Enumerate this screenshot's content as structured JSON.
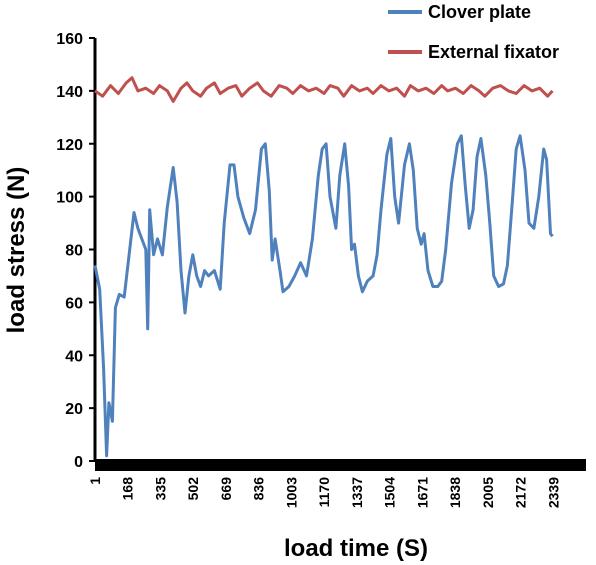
{
  "chart_data": {
    "type": "line",
    "title": "",
    "xlabel": "load time (S)",
    "ylabel": "load stress (N)",
    "ylim": [
      0,
      160
    ],
    "xlim": [
      1,
      2506
    ],
    "y_ticks": [
      0,
      20,
      40,
      60,
      80,
      100,
      120,
      140,
      160
    ],
    "x_tick_labels": [
      "1",
      "168",
      "335",
      "502",
      "669",
      "836",
      "1003",
      "1170",
      "1337",
      "1504",
      "1671",
      "1838",
      "2005",
      "2172",
      "2339"
    ],
    "legend_position": "top-right",
    "grid": false,
    "series": [
      {
        "name": "Clover plate",
        "color": "#4f81bd",
        "points": [
          [
            1,
            74
          ],
          [
            25,
            65
          ],
          [
            45,
            35
          ],
          [
            60,
            2
          ],
          [
            72,
            22
          ],
          [
            90,
            15
          ],
          [
            105,
            58
          ],
          [
            125,
            63
          ],
          [
            150,
            62
          ],
          [
            175,
            78
          ],
          [
            200,
            94
          ],
          [
            220,
            88
          ],
          [
            240,
            84
          ],
          [
            260,
            80
          ],
          [
            270,
            50
          ],
          [
            280,
            95
          ],
          [
            300,
            78
          ],
          [
            320,
            84
          ],
          [
            345,
            78
          ],
          [
            370,
            96
          ],
          [
            400,
            111
          ],
          [
            420,
            98
          ],
          [
            440,
            72
          ],
          [
            460,
            56
          ],
          [
            480,
            70
          ],
          [
            500,
            78
          ],
          [
            520,
            70
          ],
          [
            540,
            66
          ],
          [
            560,
            72
          ],
          [
            580,
            70
          ],
          [
            610,
            72
          ],
          [
            640,
            65
          ],
          [
            660,
            90
          ],
          [
            690,
            112
          ],
          [
            710,
            112
          ],
          [
            730,
            100
          ],
          [
            760,
            92
          ],
          [
            790,
            86
          ],
          [
            820,
            95
          ],
          [
            850,
            118
          ],
          [
            870,
            120
          ],
          [
            890,
            102
          ],
          [
            905,
            76
          ],
          [
            920,
            84
          ],
          [
            945,
            72
          ],
          [
            960,
            64
          ],
          [
            990,
            66
          ],
          [
            1020,
            70
          ],
          [
            1050,
            75
          ],
          [
            1080,
            70
          ],
          [
            1110,
            84
          ],
          [
            1140,
            108
          ],
          [
            1160,
            118
          ],
          [
            1180,
            120
          ],
          [
            1200,
            100
          ],
          [
            1230,
            88
          ],
          [
            1250,
            108
          ],
          [
            1275,
            120
          ],
          [
            1295,
            104
          ],
          [
            1310,
            80
          ],
          [
            1325,
            82
          ],
          [
            1345,
            70
          ],
          [
            1365,
            64
          ],
          [
            1390,
            68
          ],
          [
            1420,
            70
          ],
          [
            1440,
            78
          ],
          [
            1460,
            95
          ],
          [
            1490,
            116
          ],
          [
            1510,
            122
          ],
          [
            1530,
            100
          ],
          [
            1550,
            90
          ],
          [
            1580,
            112
          ],
          [
            1605,
            120
          ],
          [
            1625,
            110
          ],
          [
            1645,
            88
          ],
          [
            1665,
            82
          ],
          [
            1680,
            86
          ],
          [
            1700,
            72
          ],
          [
            1725,
            66
          ],
          [
            1750,
            66
          ],
          [
            1770,
            68
          ],
          [
            1790,
            80
          ],
          [
            1820,
            105
          ],
          [
            1850,
            120
          ],
          [
            1870,
            123
          ],
          [
            1890,
            104
          ],
          [
            1910,
            88
          ],
          [
            1930,
            95
          ],
          [
            1950,
            115
          ],
          [
            1970,
            122
          ],
          [
            1995,
            108
          ],
          [
            2015,
            90
          ],
          [
            2035,
            70
          ],
          [
            2060,
            66
          ],
          [
            2085,
            67
          ],
          [
            2105,
            74
          ],
          [
            2130,
            98
          ],
          [
            2150,
            118
          ],
          [
            2170,
            123
          ],
          [
            2195,
            110
          ],
          [
            2215,
            90
          ],
          [
            2240,
            88
          ],
          [
            2265,
            100
          ],
          [
            2290,
            118
          ],
          [
            2305,
            114
          ],
          [
            2325,
            86
          ],
          [
            2335,
            85
          ]
        ]
      },
      {
        "name": "External fixator",
        "color": "#c0504d",
        "points": [
          [
            1,
            140
          ],
          [
            40,
            138
          ],
          [
            80,
            142
          ],
          [
            120,
            139
          ],
          [
            160,
            143
          ],
          [
            190,
            145
          ],
          [
            220,
            140
          ],
          [
            260,
            141
          ],
          [
            300,
            139
          ],
          [
            330,
            142
          ],
          [
            370,
            140
          ],
          [
            400,
            136
          ],
          [
            440,
            141
          ],
          [
            470,
            143
          ],
          [
            500,
            140
          ],
          [
            540,
            138
          ],
          [
            570,
            141
          ],
          [
            610,
            143
          ],
          [
            640,
            139
          ],
          [
            680,
            141
          ],
          [
            720,
            142
          ],
          [
            750,
            138
          ],
          [
            790,
            141
          ],
          [
            830,
            143
          ],
          [
            860,
            140
          ],
          [
            900,
            138
          ],
          [
            940,
            142
          ],
          [
            980,
            141
          ],
          [
            1010,
            139
          ],
          [
            1050,
            142
          ],
          [
            1090,
            140
          ],
          [
            1130,
            141
          ],
          [
            1170,
            139
          ],
          [
            1200,
            142
          ],
          [
            1240,
            141
          ],
          [
            1270,
            138
          ],
          [
            1310,
            142
          ],
          [
            1350,
            140
          ],
          [
            1390,
            141
          ],
          [
            1420,
            139
          ],
          [
            1460,
            142
          ],
          [
            1500,
            140
          ],
          [
            1540,
            141
          ],
          [
            1580,
            138
          ],
          [
            1610,
            142
          ],
          [
            1650,
            140
          ],
          [
            1690,
            141
          ],
          [
            1730,
            139
          ],
          [
            1770,
            142
          ],
          [
            1800,
            140
          ],
          [
            1840,
            141
          ],
          [
            1880,
            139
          ],
          [
            1920,
            142
          ],
          [
            1960,
            140
          ],
          [
            1990,
            138
          ],
          [
            2030,
            141
          ],
          [
            2070,
            142
          ],
          [
            2110,
            140
          ],
          [
            2150,
            139
          ],
          [
            2190,
            142
          ],
          [
            2230,
            140
          ],
          [
            2270,
            141
          ],
          [
            2310,
            138
          ],
          [
            2335,
            140
          ]
        ]
      }
    ]
  }
}
